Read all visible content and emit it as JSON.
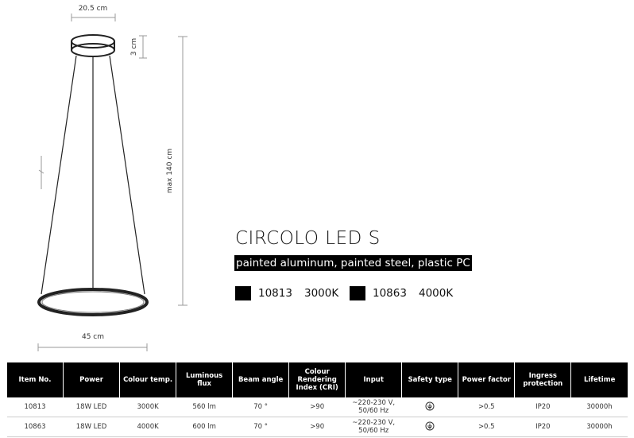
{
  "drawing": {
    "top_width": "20.5 cm",
    "canopy_height": "3 cm",
    "max_height": "max 140 cm",
    "ring_width": "45 cm"
  },
  "product": {
    "title": "CIRCOLO LED S",
    "materials": "painted aluminum, painted steel, plastic PC",
    "variants": [
      {
        "code": "10813",
        "temp": "3000K"
      },
      {
        "code": "10863",
        "temp": "4000K"
      }
    ]
  },
  "table": {
    "headers": [
      "Item No.",
      "Power",
      "Colour temp.",
      "Luminous flux",
      "Beam angle",
      "Colour Rendering Index (CRI)",
      "Input",
      "Safety type",
      "Power factor",
      "Ingress protection",
      "Lifetime"
    ],
    "rows": [
      [
        "10813",
        "18W LED",
        "3000K",
        "560 lm",
        "70 °",
        ">90",
        "~220-230 V, 50/60 Hz",
        null,
        ">0.5",
        "IP20",
        "30000h"
      ],
      [
        "10863",
        "18W LED",
        "4000K",
        "600 lm",
        "70 °",
        ">90",
        "~220-230 V, 50/60 Hz",
        null,
        ">0.5",
        "IP20",
        "30000h"
      ]
    ]
  }
}
